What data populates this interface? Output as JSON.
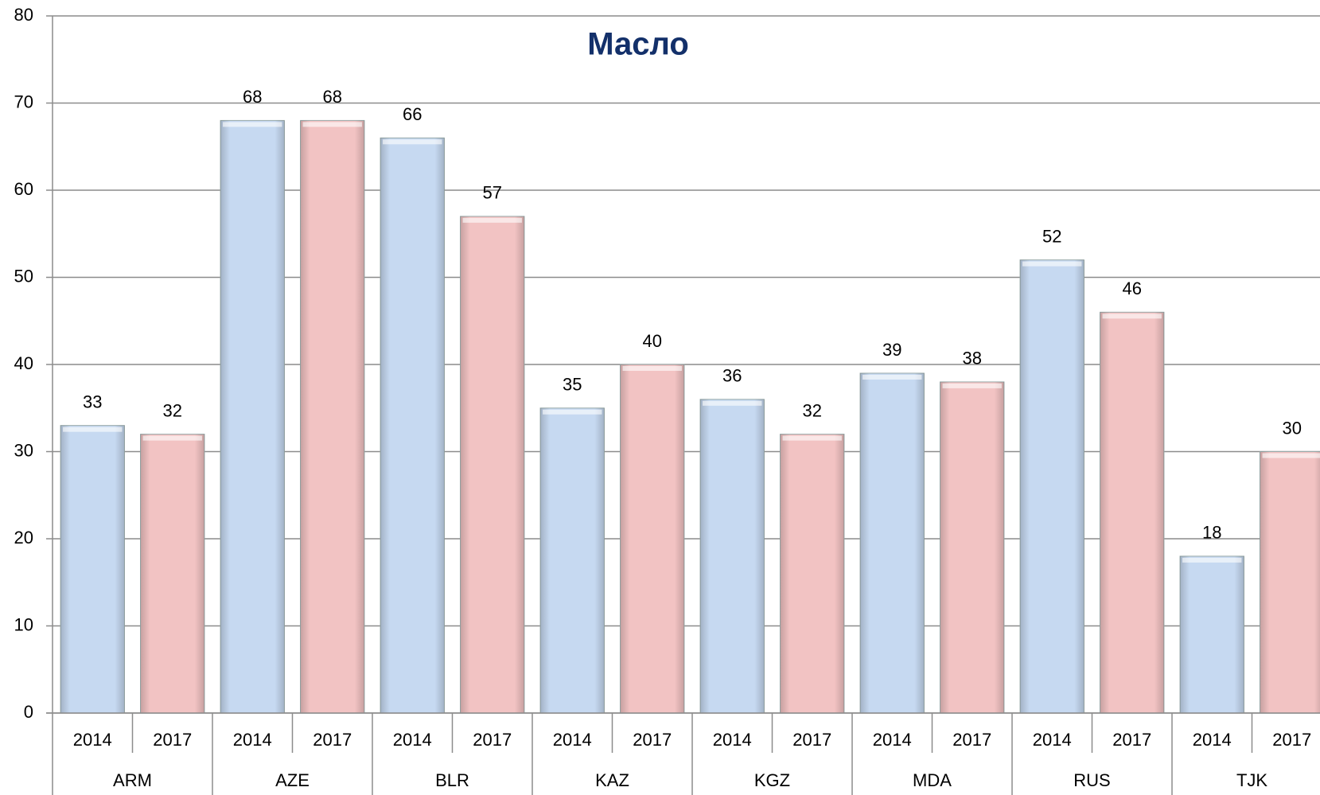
{
  "chart_data": {
    "type": "bar",
    "title": "Масло",
    "categories": [
      "ARM",
      "AZE",
      "BLR",
      "KAZ",
      "KGZ",
      "MDA",
      "RUS",
      "TJK"
    ],
    "series": [
      {
        "name": "2014",
        "color": "#c6d9f1",
        "values": [
          33,
          68,
          66,
          35,
          36,
          39,
          52,
          18
        ]
      },
      {
        "name": "2017",
        "color": "#f2c3c3",
        "values": [
          32,
          68,
          57,
          40,
          32,
          38,
          46,
          30
        ]
      }
    ],
    "ylim": [
      0,
      80
    ],
    "yticks": [
      0,
      10,
      20,
      30,
      40,
      50,
      60,
      70,
      80
    ],
    "grid": true
  }
}
